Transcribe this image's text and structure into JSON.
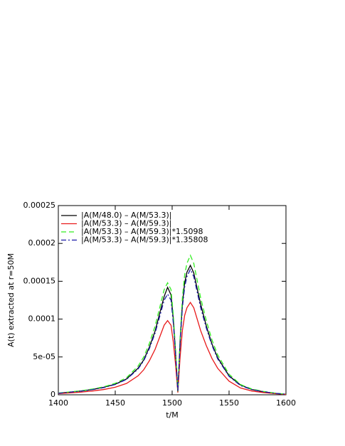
{
  "chart_data": {
    "type": "line",
    "xlabel": "t/M",
    "ylabel": "A(t) extracted at r=50M",
    "x": [
      1400,
      1410,
      1420,
      1430,
      1440,
      1450,
      1460,
      1470,
      1475,
      1480,
      1485,
      1490,
      1493,
      1496,
      1499,
      1501,
      1503,
      1505,
      1507,
      1509,
      1511,
      1513,
      1516,
      1519,
      1522,
      1525,
      1530,
      1535,
      1540,
      1550,
      1560,
      1570,
      1580,
      1590,
      1600
    ],
    "series": [
      {
        "name": "|A(M/48.0) – A(M/53.3)|",
        "color": "#000000",
        "linestyle": "solid",
        "values": [
          2e-06,
          3.5e-06,
          5e-06,
          7e-06,
          1e-05,
          1.4e-05,
          2.1e-05,
          3.5e-05,
          4.6e-05,
          6.3e-05,
          8.4e-05,
          0.000113,
          0.00013,
          0.000142,
          0.000132,
          0.0001,
          5.5e-05,
          4e-06,
          7e-05,
          0.00012,
          0.000148,
          0.000162,
          0.000171,
          0.000161,
          0.00014,
          0.00012,
          9.1e-05,
          6.7e-05,
          4.9e-05,
          2.5e-05,
          1.3e-05,
          7e-06,
          4e-06,
          2e-06,
          7e-07
        ]
      },
      {
        "name": "|A(M/53.3) – A(M/59.3)|",
        "color": "#e8191a",
        "linestyle": "solid",
        "values": [
          1.5e-06,
          2.5e-06,
          3.5e-06,
          5e-06,
          7e-06,
          1e-05,
          1.5e-05,
          2.5e-05,
          3.3e-05,
          4.5e-05,
          6e-05,
          8e-05,
          9.2e-05,
          9.8e-05,
          9.2e-05,
          7e-05,
          4e-05,
          3e-06,
          5e-05,
          8.5e-05,
          0.000105,
          0.000115,
          0.000122,
          0.000115,
          0.0001,
          8.5e-05,
          6.5e-05,
          4.8e-05,
          3.5e-05,
          1.8e-05,
          9e-06,
          5e-06,
          3e-06,
          1.5e-06,
          5e-07
        ]
      },
      {
        "name": "|A(M/53.3) – A(M/59.3)|*1.5098",
        "color": "#33ee22",
        "linestyle": "dashed",
        "values": [
          2.3e-06,
          3.8e-06,
          5.3e-06,
          7.6e-06,
          1.06e-05,
          1.51e-05,
          2.27e-05,
          3.78e-05,
          4.98e-05,
          6.79e-05,
          9.06e-05,
          0.0001208,
          0.0001389,
          0.000148,
          0.0001389,
          0.0001057,
          6.04e-05,
          4.5e-06,
          7.55e-05,
          0.0001283,
          0.0001585,
          0.0001736,
          0.0001842,
          0.0001736,
          0.000151,
          0.0001283,
          9.81e-05,
          7.25e-05,
          5.28e-05,
          2.72e-05,
          1.36e-05,
          7.6e-06,
          4.5e-06,
          2.3e-06,
          8e-07
        ]
      },
      {
        "name": "|A(M/53.3) – A(M/59.3)|*1.35808",
        "color": "#1a1aa8",
        "linestyle": "dashdot",
        "values": [
          2e-06,
          3.4e-06,
          4.8e-06,
          6.8e-06,
          9.5e-06,
          1.36e-05,
          2.04e-05,
          3.4e-05,
          4.48e-05,
          6.11e-05,
          8.15e-05,
          0.0001086,
          0.0001249,
          0.0001331,
          0.0001249,
          9.51e-05,
          5.43e-05,
          4.1e-06,
          6.79e-05,
          0.0001154,
          0.0001426,
          0.0001562,
          0.0001657,
          0.0001562,
          0.0001358,
          0.0001154,
          8.83e-05,
          6.52e-05,
          4.75e-05,
          2.44e-05,
          1.22e-05,
          6.8e-06,
          4.1e-06,
          2e-06,
          7e-07
        ]
      }
    ],
    "xlim": [
      1400,
      1600
    ],
    "xticks": [
      1400,
      1450,
      1500,
      1550,
      1600
    ],
    "ylim": [
      0,
      0.00025
    ],
    "yticks": [
      0,
      {
        "value": 5e-05,
        "label": "5e-05"
      },
      0.0001,
      0.00015,
      0.0002,
      0.00025
    ],
    "grid": false,
    "legend": "upper left"
  }
}
